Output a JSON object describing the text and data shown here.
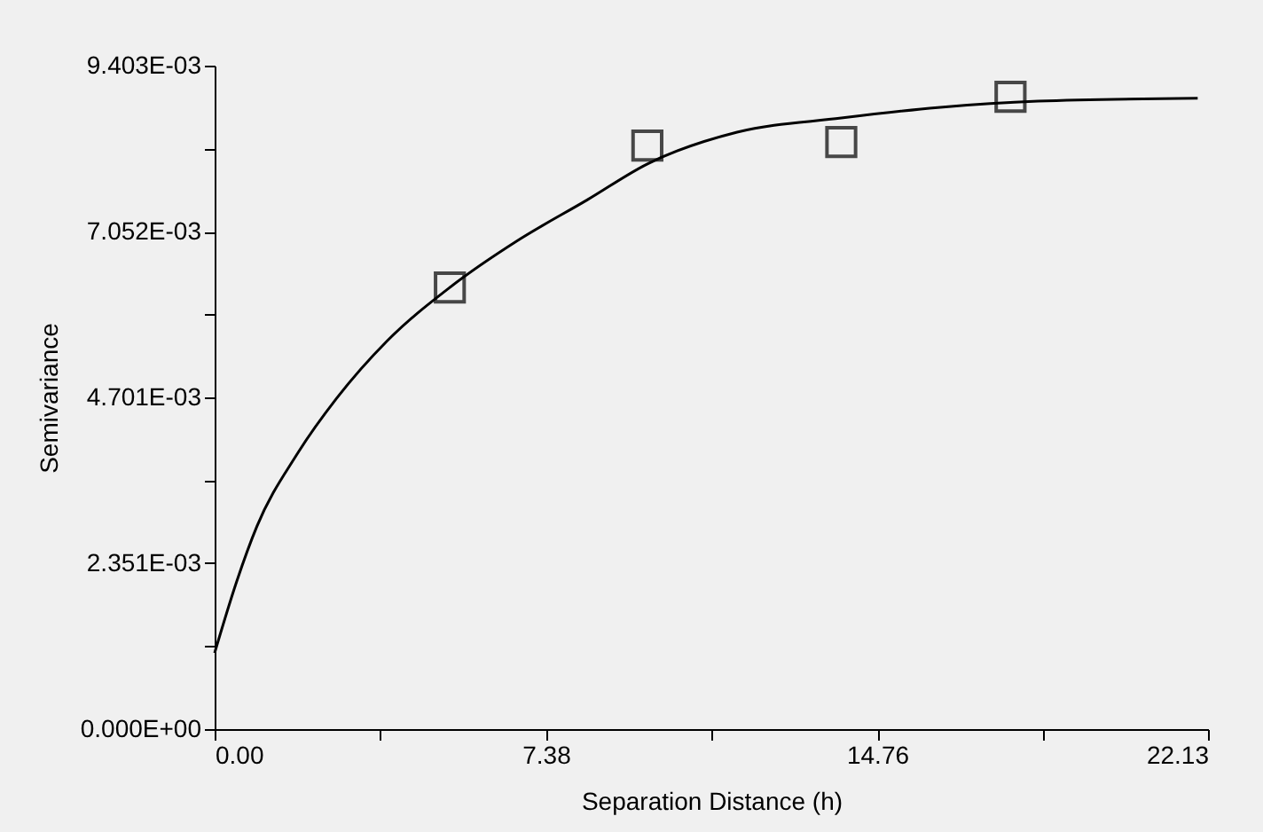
{
  "chart_data": {
    "type": "scatter",
    "xlabel": "Separation Distance (h)",
    "ylabel": "Semivariance",
    "xlim": [
      0,
      22.13
    ],
    "ylim": [
      0,
      0.009403
    ],
    "xticks": [
      {
        "value": 0,
        "label": "0.00"
      },
      {
        "value": 3.69,
        "label": null
      },
      {
        "value": 7.38,
        "label": "7.38"
      },
      {
        "value": 11.07,
        "label": null
      },
      {
        "value": 14.76,
        "label": "14.76"
      },
      {
        "value": 18.445,
        "label": null
      },
      {
        "value": 22.13,
        "label": "22.13"
      }
    ],
    "yticks": [
      {
        "value": 0,
        "label": "0.000E+00"
      },
      {
        "value": 0.0011755,
        "label": null
      },
      {
        "value": 0.002351,
        "label": "2.351E-03"
      },
      {
        "value": 0.0035265,
        "label": null
      },
      {
        "value": 0.004701,
        "label": "4.701E-03"
      },
      {
        "value": 0.0058765,
        "label": null
      },
      {
        "value": 0.007052,
        "label": "7.052E-03"
      },
      {
        "value": 0.0082275,
        "label": null
      },
      {
        "value": 0.009403,
        "label": "9.403E-03"
      }
    ],
    "grid": false,
    "series": [
      {
        "color": "#000000",
        "marker": "square",
        "x": [
          5.24,
          9.64,
          13.96,
          17.73
        ],
        "values": [
          0.00626,
          0.00827,
          0.00832,
          0.00896
        ]
      },
      {
        "type": "line",
        "color": "#000000",
        "line_style": "solid",
        "x": [
          0,
          0.49,
          0.94,
          1.83,
          2.72,
          3.84,
          5.24,
          6.74,
          8.3,
          9.64,
          11.64,
          13.96,
          16.11,
          18.34,
          21.9
        ],
        "values": [
          0.00108,
          0.00209,
          0.00287,
          0.00389,
          0.00469,
          0.0055,
          0.00626,
          0.00692,
          0.0075,
          0.00801,
          0.00846,
          0.00866,
          0.00881,
          0.0089,
          0.00894
        ]
      }
    ]
  }
}
